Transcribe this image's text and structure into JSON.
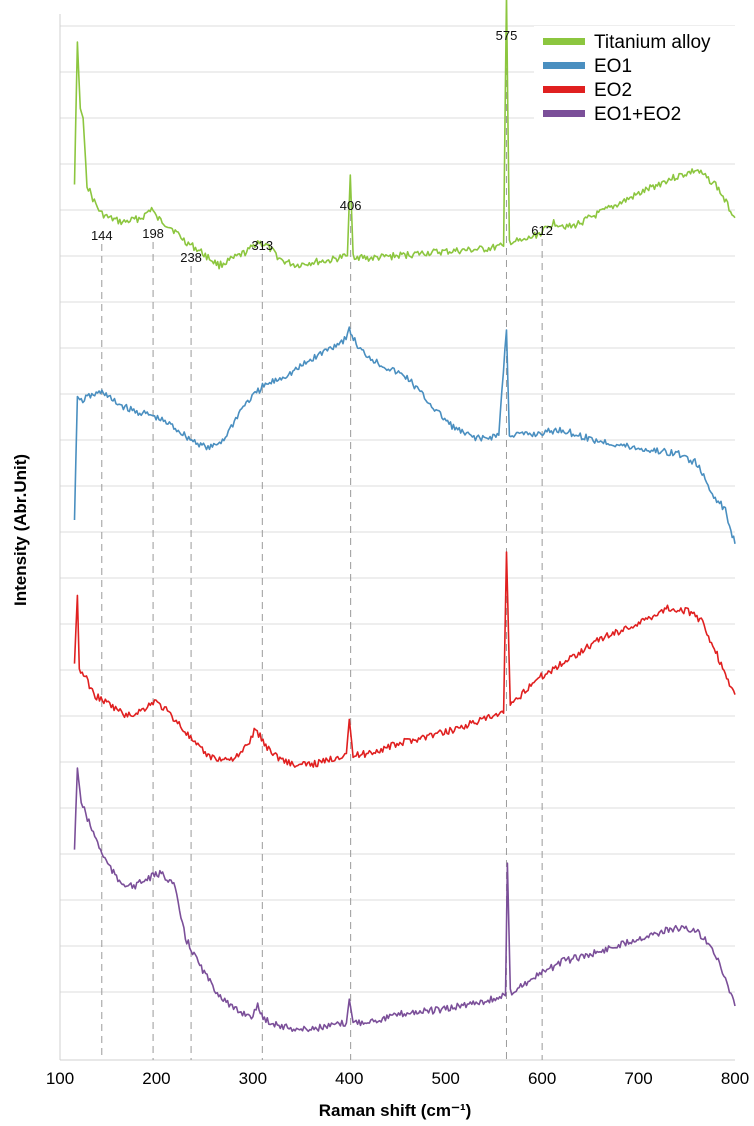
{
  "chart_data": {
    "type": "line",
    "title": "",
    "xlabel": "Raman shift (cm⁻¹)",
    "ylabel": "Intensity (Abr.Unit)",
    "xlim": [
      100,
      800
    ],
    "xticks": [
      100,
      200,
      300,
      400,
      500,
      600,
      700,
      800
    ],
    "grid": true,
    "legend_position": "top-right",
    "peak_markers": [
      {
        "x": 144,
        "label": "144"
      },
      {
        "x": 198,
        "label": "198"
      },
      {
        "x": 238,
        "label": "238"
      },
      {
        "x": 313,
        "label": "313"
      },
      {
        "x": 406,
        "label": "406"
      },
      {
        "x": 575,
        "label": "575"
      },
      {
        "x": 612,
        "label": "612"
      }
    ],
    "series": [
      {
        "name": "Titanium alloy",
        "color": "#8cc63f",
        "points": [
          [
            115,
            0.9
          ],
          [
            118,
            2.4
          ],
          [
            121,
            1.7
          ],
          [
            124,
            1.6
          ],
          [
            128,
            0.9
          ],
          [
            134,
            0.75
          ],
          [
            142,
            0.6
          ],
          [
            150,
            0.55
          ],
          [
            165,
            0.5
          ],
          [
            185,
            0.55
          ],
          [
            195,
            0.65
          ],
          [
            200,
            0.55
          ],
          [
            215,
            0.45
          ],
          [
            230,
            0.3
          ],
          [
            245,
            0.2
          ],
          [
            255,
            0.12
          ],
          [
            265,
            0.05
          ],
          [
            280,
            0.12
          ],
          [
            295,
            0.2
          ],
          [
            305,
            0.3
          ],
          [
            315,
            0.25
          ],
          [
            330,
            0.1
          ],
          [
            345,
            0.05
          ],
          [
            360,
            0.08
          ],
          [
            380,
            0.1
          ],
          [
            398,
            0.15
          ],
          [
            401,
            1.0
          ],
          [
            404,
            0.15
          ],
          [
            420,
            0.12
          ],
          [
            450,
            0.15
          ],
          [
            480,
            0.18
          ],
          [
            510,
            0.2
          ],
          [
            540,
            0.22
          ],
          [
            560,
            0.25
          ],
          [
            563,
            2.9
          ],
          [
            566,
            0.3
          ],
          [
            580,
            0.3
          ],
          [
            600,
            0.4
          ],
          [
            612,
            0.5
          ],
          [
            630,
            0.45
          ],
          [
            660,
            0.6
          ],
          [
            700,
            0.8
          ],
          [
            730,
            0.95
          ],
          [
            760,
            1.05
          ],
          [
            780,
            0.9
          ],
          [
            800,
            0.55
          ]
        ]
      },
      {
        "name": "EO1",
        "color": "#4a8fc0",
        "points": [
          [
            115,
            0.0
          ],
          [
            118,
            1.3
          ],
          [
            122,
            1.25
          ],
          [
            130,
            1.3
          ],
          [
            145,
            1.35
          ],
          [
            155,
            1.25
          ],
          [
            175,
            1.15
          ],
          [
            195,
            1.1
          ],
          [
            215,
            1.0
          ],
          [
            235,
            0.85
          ],
          [
            255,
            0.75
          ],
          [
            270,
            0.85
          ],
          [
            290,
            1.2
          ],
          [
            310,
            1.4
          ],
          [
            340,
            1.55
          ],
          [
            370,
            1.75
          ],
          [
            395,
            1.9
          ],
          [
            400,
            2.0
          ],
          [
            410,
            1.8
          ],
          [
            430,
            1.65
          ],
          [
            460,
            1.5
          ],
          [
            490,
            1.15
          ],
          [
            505,
            1.0
          ],
          [
            520,
            0.9
          ],
          [
            540,
            0.85
          ],
          [
            555,
            0.9
          ],
          [
            563,
            2.0
          ],
          [
            566,
            0.9
          ],
          [
            590,
            0.9
          ],
          [
            620,
            0.95
          ],
          [
            650,
            0.85
          ],
          [
            700,
            0.75
          ],
          [
            740,
            0.7
          ],
          [
            760,
            0.6
          ],
          [
            775,
            0.3
          ],
          [
            790,
            0.1
          ],
          [
            800,
            -0.25
          ]
        ]
      },
      {
        "name": "EO2",
        "color": "#e02020",
        "points": [
          [
            115,
            2.2
          ],
          [
            118,
            3.3
          ],
          [
            120,
            2.1
          ],
          [
            126,
            2.0
          ],
          [
            135,
            1.7
          ],
          [
            150,
            1.55
          ],
          [
            170,
            1.35
          ],
          [
            185,
            1.45
          ],
          [
            198,
            1.6
          ],
          [
            210,
            1.45
          ],
          [
            225,
            1.2
          ],
          [
            240,
            0.9
          ],
          [
            255,
            0.7
          ],
          [
            270,
            0.65
          ],
          [
            285,
            0.7
          ],
          [
            295,
            0.9
          ],
          [
            303,
            1.15
          ],
          [
            312,
            0.9
          ],
          [
            325,
            0.7
          ],
          [
            345,
            0.55
          ],
          [
            370,
            0.6
          ],
          [
            397,
            0.75
          ],
          [
            400,
            1.3
          ],
          [
            404,
            0.7
          ],
          [
            430,
            0.8
          ],
          [
            460,
            0.95
          ],
          [
            500,
            1.1
          ],
          [
            540,
            1.3
          ],
          [
            560,
            1.4
          ],
          [
            563,
            4.0
          ],
          [
            567,
            1.5
          ],
          [
            590,
            1.9
          ],
          [
            620,
            2.2
          ],
          [
            660,
            2.6
          ],
          [
            700,
            2.85
          ],
          [
            730,
            3.1
          ],
          [
            750,
            3.05
          ],
          [
            765,
            2.9
          ],
          [
            780,
            2.4
          ],
          [
            790,
            2.0
          ],
          [
            800,
            1.7
          ]
        ]
      },
      {
        "name": "EO1+EO2",
        "color": "#7b4f99",
        "points": [
          [
            115,
            2.8
          ],
          [
            118,
            4.0
          ],
          [
            122,
            3.5
          ],
          [
            130,
            3.2
          ],
          [
            145,
            2.7
          ],
          [
            160,
            2.35
          ],
          [
            175,
            2.25
          ],
          [
            195,
            2.4
          ],
          [
            205,
            2.45
          ],
          [
            218,
            2.3
          ],
          [
            230,
            1.5
          ],
          [
            245,
            1.1
          ],
          [
            260,
            0.75
          ],
          [
            280,
            0.45
          ],
          [
            300,
            0.35
          ],
          [
            305,
            0.5
          ],
          [
            312,
            0.3
          ],
          [
            330,
            0.2
          ],
          [
            350,
            0.15
          ],
          [
            380,
            0.2
          ],
          [
            397,
            0.25
          ],
          [
            400,
            0.6
          ],
          [
            404,
            0.25
          ],
          [
            430,
            0.3
          ],
          [
            460,
            0.4
          ],
          [
            500,
            0.45
          ],
          [
            530,
            0.55
          ],
          [
            550,
            0.6
          ],
          [
            562,
            0.65
          ],
          [
            564,
            2.6
          ],
          [
            567,
            0.7
          ],
          [
            590,
            0.9
          ],
          [
            620,
            1.15
          ],
          [
            660,
            1.3
          ],
          [
            700,
            1.5
          ],
          [
            740,
            1.65
          ],
          [
            760,
            1.6
          ],
          [
            775,
            1.4
          ],
          [
            790,
            0.9
          ],
          [
            800,
            0.5
          ]
        ]
      }
    ]
  }
}
